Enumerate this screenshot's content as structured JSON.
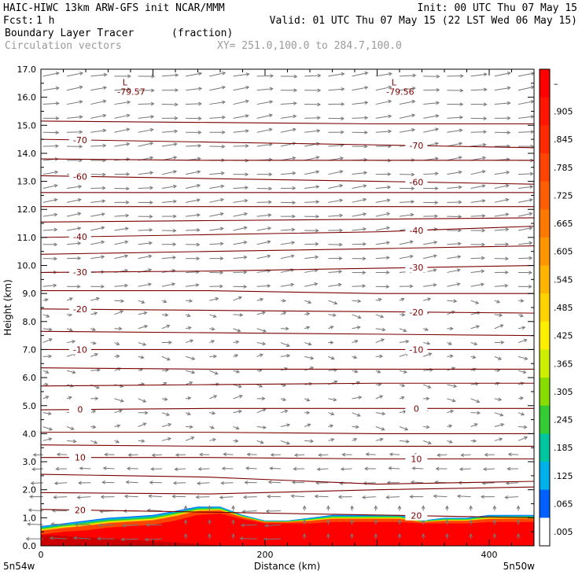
{
  "header": {
    "line1_left": "HAIC-HIWC 13km ARW-GFS init   NCAR/MMM",
    "line1_right": "Init: 00 UTC Thu 07 May 15",
    "fcst_label": "Fcst:",
    "fcst_value": "1 h",
    "valid": "Valid: 01 UTC Thu 07 May 15 (22 LST Wed 06 May 15)",
    "field1_name": "Boundary Layer Tracer",
    "field1_units": "(fraction)",
    "field2_name": "Circulation vectors",
    "xy_range": "XY= 251.0,100.0 to 284.7,100.0"
  },
  "colors": {
    "contour": "#7a0000",
    "vector": "#777777",
    "frame": "#000000"
  },
  "chart_data": {
    "type": "heatmap",
    "xlabel": "Distance (km)",
    "ylabel": "Height (km)",
    "xlim": [
      0,
      440
    ],
    "ylim": [
      0,
      17
    ],
    "x_ticks": [
      {
        "value": 0,
        "label": "0"
      },
      {
        "value": 200,
        "label": "200"
      },
      {
        "value": 400,
        "label": "400"
      }
    ],
    "y_ticks": [
      "0.0",
      "1.0",
      "2.0",
      "3.0",
      "4.0",
      "5.0",
      "6.0",
      "7.0",
      "8.0",
      "9.0",
      "10.0",
      "11.0",
      "12.0",
      "13.0",
      "14.0",
      "15.0",
      "16.0",
      "17.0"
    ],
    "endpoints": {
      "left": "5n54w",
      "right": "5n50w"
    },
    "colorbar": {
      "labels": [
        "–",
        ".905",
        ".845",
        ".785",
        ".725",
        ".665",
        ".605",
        ".545",
        ".485",
        ".425",
        ".365",
        ".305",
        ".245",
        ".185",
        ".125",
        ".065",
        ".005"
      ],
      "colors": [
        "#ff0000",
        "#ff1500",
        "#ff2a00",
        "#ff4400",
        "#ff5e00",
        "#ff7800",
        "#ff9600",
        "#ffb400",
        "#ffd200",
        "#ffee00",
        "#ccee00",
        "#88dd00",
        "#33cc33",
        "#00c6a0",
        "#00b0e8",
        "#0060ff",
        "#ffffff"
      ]
    },
    "tracer": {
      "x": [
        0,
        20,
        40,
        60,
        80,
        100,
        120,
        140,
        160,
        180,
        200,
        220,
        240,
        260,
        280,
        300,
        320,
        340,
        360,
        380,
        400,
        420,
        440
      ],
      "top_km": [
        0.7,
        0.8,
        0.9,
        1.0,
        1.05,
        1.1,
        1.25,
        1.4,
        1.4,
        1.1,
        0.9,
        0.9,
        1.0,
        1.1,
        1.1,
        1.1,
        1.1,
        0.9,
        1.0,
        1.0,
        1.1,
        1.1,
        1.1
      ],
      "red_top_km": [
        0.4,
        0.5,
        0.55,
        0.65,
        0.7,
        0.75,
        0.9,
        1.1,
        1.15,
        0.95,
        0.8,
        0.8,
        0.8,
        0.85,
        0.85,
        0.85,
        0.85,
        0.8,
        0.8,
        0.8,
        0.85,
        0.85,
        0.85
      ]
    },
    "contours": [
      {
        "label": "-70",
        "heights_km": [
          14.5,
          14.4,
          14.3,
          14.2
        ]
      },
      {
        "label": "-60",
        "heights_km": [
          13.2,
          13.1,
          13.0,
          12.9
        ]
      },
      {
        "label": "-40",
        "heights_km": [
          11.0,
          11.1,
          11.2,
          11.4
        ]
      },
      {
        "label": "-30",
        "heights_km": [
          9.75,
          9.8,
          9.9,
          10.0
        ]
      },
      {
        "label": "-20",
        "heights_km": [
          8.45,
          8.4,
          8.35,
          8.3
        ]
      },
      {
        "label": "-10",
        "heights_km": [
          7.0,
          7.0,
          7.0,
          7.0
        ]
      },
      {
        "label": "0",
        "heights_km": [
          4.85,
          4.9,
          4.9,
          4.9
        ]
      },
      {
        "label": "10",
        "heights_km": [
          3.15,
          3.15,
          3.1,
          3.1
        ]
      },
      {
        "label": "",
        "heights_km": [
          15.15,
          15.1,
          15.05,
          15.05
        ]
      },
      {
        "label": "",
        "heights_km": [
          13.8,
          13.75,
          13.75,
          13.75
        ]
      },
      {
        "label": "",
        "heights_km": [
          12.6,
          12.6,
          12.6,
          12.6
        ]
      },
      {
        "label": "",
        "heights_km": [
          12.1,
          12.1,
          12.1,
          12.1
        ]
      },
      {
        "label": "",
        "heights_km": [
          11.55,
          11.6,
          11.65,
          11.7
        ]
      },
      {
        "label": "",
        "heights_km": [
          10.4,
          10.5,
          10.6,
          10.7
        ]
      },
      {
        "label": "",
        "heights_km": [
          9.1,
          9.1,
          9.0,
          9.0
        ]
      },
      {
        "label": "",
        "heights_km": [
          7.65,
          7.6,
          7.55,
          7.5
        ]
      },
      {
        "label": "",
        "heights_km": [
          6.35,
          6.3,
          6.3,
          6.3
        ]
      },
      {
        "label": "",
        "heights_km": [
          5.7,
          5.75,
          5.8,
          5.8
        ]
      },
      {
        "label": "",
        "heights_km": [
          4.05,
          4.05,
          4.0,
          4.0
        ]
      },
      {
        "label": "",
        "heights_km": [
          3.6,
          3.55,
          3.55,
          3.55
        ]
      },
      {
        "label": "",
        "heights_km": [
          2.55,
          2.45,
          2.2,
          2.3
        ]
      },
      {
        "label": "",
        "heights_km": [
          1.9,
          1.85,
          2.0,
          2.1
        ]
      },
      {
        "label": "20",
        "heights_km": [
          1.3,
          1.2,
          1.1,
          1.0
        ]
      }
    ],
    "lows": [
      {
        "marker": "L",
        "value": "-79.57",
        "x_km": 75,
        "y_km": 16.2
      },
      {
        "marker": "L",
        "value": -79.56,
        "x_km": 315,
        "y_km": 16.2
      }
    ]
  }
}
